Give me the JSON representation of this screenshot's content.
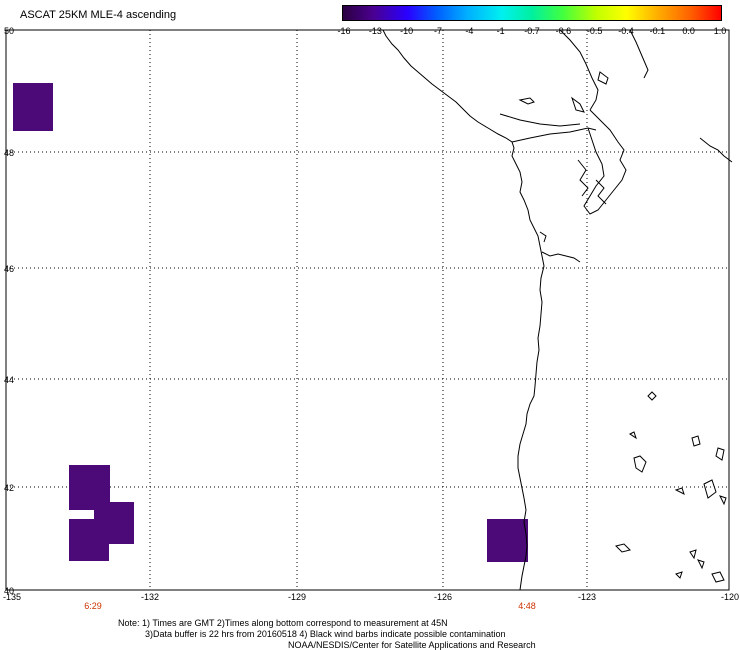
{
  "title": "ASCAT 25KM MLE-4 ascending",
  "colorbar": {
    "colors": [
      "#2a0040",
      "#4a0090",
      "#2a00ff",
      "#0060ff",
      "#00b0ff",
      "#00f0f0",
      "#00f0a0",
      "#40ff40",
      "#c0ff00",
      "#ffff00",
      "#ffb000",
      "#ff6000",
      "#ff0000"
    ],
    "ticks": [
      "-16",
      "-13",
      "-10",
      "-7",
      "-4",
      "-1",
      "-0.7",
      "-0.6",
      "-0.5",
      "-0.4",
      "-0.1",
      "0.0",
      "1.0"
    ]
  },
  "lat_labels": [
    "50",
    "48",
    "46",
    "44",
    "42",
    "40"
  ],
  "lon_labels": [
    "-135",
    "-132",
    "-129",
    "-126",
    "-123",
    "-120"
  ],
  "time_labels": [
    "6:29",
    "4:48"
  ],
  "cell_color": "#4b0a78",
  "notes": {
    "line1": "Note: 1) Times are GMT 2)Times along bottom correspond to measurement at 45N",
    "line2": "3)Data buffer is 22 hrs from 20160518 4) Black wind barbs indicate possible contamination",
    "line3": "NOAA/NESDIS/Center for Satellite Applications and Research"
  }
}
